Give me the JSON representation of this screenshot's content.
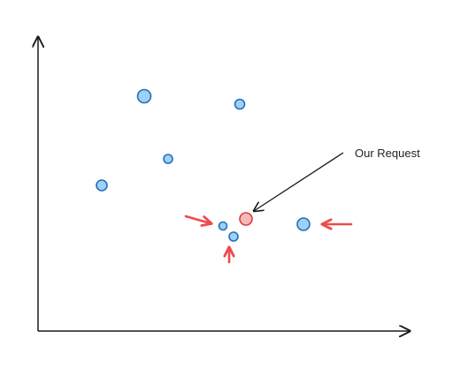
{
  "annotation": {
    "text": "Our Request"
  },
  "colors": {
    "axis": "#1a1a1a",
    "point_fill": "#9fd0f5",
    "point_stroke": "#1f6fc0",
    "request_fill": "#f7b8b8",
    "request_stroke": "#e03b3b",
    "highlight_arrow": "#ee4b4b",
    "annotation_arrow": "#1a1a1a"
  },
  "points": [
    {
      "id": "point-large-top-left",
      "kind": "neighbor-large"
    },
    {
      "id": "point-top-center",
      "kind": "neighbor"
    },
    {
      "id": "point-mid-left",
      "kind": "neighbor"
    },
    {
      "id": "point-left",
      "kind": "neighbor"
    },
    {
      "id": "point-near-left",
      "kind": "nearest"
    },
    {
      "id": "point-near-below",
      "kind": "nearest"
    },
    {
      "id": "point-near-right",
      "kind": "nearest-large"
    },
    {
      "id": "request-point",
      "kind": "request"
    }
  ]
}
